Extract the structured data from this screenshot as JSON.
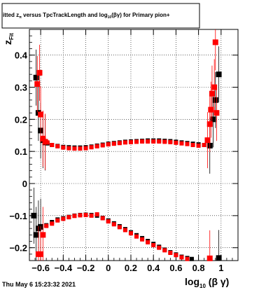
{
  "title": {
    "pre": "itted  z",
    "sub1": "π",
    "mid": " versus TpcTrackLength and log",
    "sub2": "10",
    "post": "(βγ) for Primary pion+"
  },
  "ylabel": {
    "main": "z",
    "sub": "Fit"
  },
  "xlabel": {
    "main": "log",
    "sub": "10",
    "post": " (β γ)"
  },
  "timestamp": "Thu May  6 15:23:32 2021",
  "chart_data": {
    "type": "scatter",
    "xlim": [
      -0.7,
      1.15
    ],
    "ylim": [
      -0.24,
      0.48
    ],
    "grid": true,
    "xticks": [
      -0.6,
      -0.4,
      -0.2,
      0,
      0.2,
      0.4,
      0.6,
      0.8,
      1
    ],
    "xtick_labels": [
      "−0.6",
      "−0.4",
      "−0.2",
      "0",
      "0.2",
      "0.4",
      "0.6",
      "0.8",
      "1"
    ],
    "yticks": [
      -0.2,
      -0.1,
      0,
      0.1,
      0.2,
      0.3,
      0.4
    ],
    "ytick_labels": [
      "−0.2",
      "−0.1",
      "0",
      "0.1",
      "0.2",
      "0.3",
      "0.4"
    ],
    "series": [
      {
        "color": "#000000",
        "points": [
          [
            -0.64,
            0.33
          ],
          [
            -0.62,
            0.22
          ],
          [
            -0.6,
            0.165
          ],
          [
            -0.58,
            0.135
          ],
          [
            -0.56,
            0.128
          ],
          [
            -0.54,
            0.125
          ],
          [
            -0.5,
            0.12
          ],
          [
            -0.45,
            0.117
          ],
          [
            -0.4,
            0.114
          ],
          [
            -0.35,
            0.113
          ],
          [
            -0.3,
            0.112
          ],
          [
            -0.25,
            0.112
          ],
          [
            -0.2,
            0.113
          ],
          [
            -0.15,
            0.115
          ],
          [
            -0.1,
            0.118
          ],
          [
            -0.05,
            0.121
          ],
          [
            0,
            0.124
          ],
          [
            0.05,
            0.126
          ],
          [
            0.1,
            0.128
          ],
          [
            0.15,
            0.13
          ],
          [
            0.2,
            0.131
          ],
          [
            0.25,
            0.132
          ],
          [
            0.3,
            0.133
          ],
          [
            0.35,
            0.134
          ],
          [
            0.4,
            0.134
          ],
          [
            0.45,
            0.134
          ],
          [
            0.5,
            0.133
          ],
          [
            0.55,
            0.132
          ],
          [
            0.6,
            0.13
          ],
          [
            0.65,
            0.128
          ],
          [
            0.7,
            0.126
          ],
          [
            0.75,
            0.124
          ],
          [
            0.8,
            0.122
          ],
          [
            0.85,
            0.12
          ],
          [
            0.9,
            0.118
          ],
          [
            0.93,
            0.2
          ],
          [
            0.95,
            0.26
          ],
          [
            0.98,
            0.34
          ],
          [
            -0.66,
            -0.1
          ],
          [
            -0.64,
            -0.16
          ],
          [
            -0.62,
            -0.14
          ],
          [
            -0.6,
            -0.135
          ],
          [
            -0.55,
            -0.13
          ],
          [
            -0.5,
            -0.12
          ],
          [
            -0.45,
            -0.112
          ],
          [
            -0.4,
            -0.108
          ],
          [
            -0.35,
            -0.104
          ],
          [
            -0.3,
            -0.1
          ],
          [
            -0.25,
            -0.098
          ],
          [
            -0.2,
            -0.097
          ],
          [
            -0.15,
            -0.098
          ],
          [
            -0.1,
            -0.1
          ],
          [
            -0.05,
            -0.107
          ],
          [
            0,
            -0.115
          ],
          [
            0.05,
            -0.124
          ],
          [
            0.1,
            -0.133
          ],
          [
            0.15,
            -0.142
          ],
          [
            0.2,
            -0.152
          ],
          [
            0.25,
            -0.161
          ],
          [
            0.3,
            -0.17
          ],
          [
            0.35,
            -0.179
          ],
          [
            0.4,
            -0.188
          ],
          [
            0.45,
            -0.197
          ],
          [
            0.5,
            -0.206
          ],
          [
            0.55,
            -0.214
          ],
          [
            0.6,
            -0.221
          ],
          [
            0.65,
            -0.228
          ],
          [
            0.7,
            -0.232
          ],
          [
            0.74,
            -0.235
          ],
          [
            0.98,
            -0.232
          ]
        ]
      },
      {
        "color": "#ff0000",
        "points": [
          [
            -0.63,
            0.31
          ],
          [
            -0.61,
            0.345
          ],
          [
            -0.6,
            0.215
          ],
          [
            -0.58,
            0.14
          ],
          [
            -0.56,
            0.13
          ],
          [
            -0.54,
            0.128
          ],
          [
            -0.5,
            0.12
          ],
          [
            -0.45,
            0.116
          ],
          [
            -0.4,
            0.112
          ],
          [
            -0.35,
            0.11
          ],
          [
            -0.3,
            0.109
          ],
          [
            -0.25,
            0.109
          ],
          [
            -0.2,
            0.11
          ],
          [
            -0.15,
            0.113
          ],
          [
            -0.1,
            0.116
          ],
          [
            -0.05,
            0.119
          ],
          [
            0,
            0.122
          ],
          [
            0.05,
            0.124
          ],
          [
            0.1,
            0.126
          ],
          [
            0.15,
            0.128
          ],
          [
            0.2,
            0.129
          ],
          [
            0.25,
            0.13
          ],
          [
            0.3,
            0.131
          ],
          [
            0.35,
            0.131
          ],
          [
            0.4,
            0.131
          ],
          [
            0.45,
            0.131
          ],
          [
            0.5,
            0.13
          ],
          [
            0.55,
            0.129
          ],
          [
            0.6,
            0.127
          ],
          [
            0.65,
            0.125
          ],
          [
            0.7,
            0.123
          ],
          [
            0.75,
            0.12
          ],
          [
            0.8,
            0.118
          ],
          [
            0.85,
            0.12
          ],
          [
            0.88,
            0.135
          ],
          [
            0.9,
            0.185
          ],
          [
            0.91,
            0.23
          ],
          [
            0.92,
            0.28
          ],
          [
            0.94,
            0.3
          ],
          [
            0.95,
            0.44
          ],
          [
            0.96,
            0.22
          ],
          [
            -0.62,
            -0.22
          ],
          [
            -0.6,
            -0.22
          ],
          [
            -0.58,
            -0.16
          ],
          [
            -0.55,
            -0.132
          ],
          [
            -0.5,
            -0.125
          ],
          [
            -0.45,
            -0.115
          ],
          [
            -0.4,
            -0.11
          ],
          [
            -0.35,
            -0.105
          ],
          [
            -0.3,
            -0.101
          ],
          [
            -0.25,
            -0.099
          ],
          [
            -0.2,
            -0.098
          ],
          [
            -0.15,
            -0.1
          ],
          [
            -0.1,
            -0.096
          ],
          [
            -0.05,
            -0.108
          ],
          [
            0,
            -0.118
          ],
          [
            0.05,
            -0.127
          ],
          [
            0.1,
            -0.136
          ],
          [
            0.15,
            -0.145
          ],
          [
            0.2,
            -0.155
          ],
          [
            0.25,
            -0.165
          ],
          [
            0.3,
            -0.174
          ],
          [
            0.35,
            -0.183
          ],
          [
            0.4,
            -0.192
          ],
          [
            0.45,
            -0.2
          ],
          [
            0.5,
            -0.208
          ],
          [
            0.55,
            -0.216
          ],
          [
            0.6,
            -0.223
          ],
          [
            0.65,
            -0.23
          ],
          [
            0.7,
            -0.235
          ],
          [
            0.9,
            -0.233
          ]
        ]
      }
    ]
  }
}
